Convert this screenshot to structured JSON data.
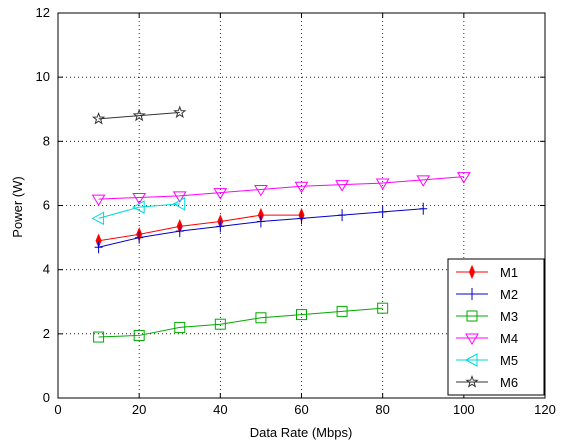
{
  "chart_data": {
    "type": "line",
    "title": "",
    "xlabel": "Data Rate (Mbps)",
    "ylabel": "Power (W)",
    "xlim": [
      0,
      120
    ],
    "ylim": [
      0,
      12
    ],
    "xticks": [
      0,
      20,
      40,
      60,
      80,
      100,
      120
    ],
    "yticks": [
      0,
      2,
      4,
      6,
      8,
      10,
      12
    ],
    "grid": true,
    "legend": "bottom-right",
    "series": [
      {
        "name": "M1",
        "color": "#ff0000",
        "marker": "diamond",
        "x": [
          10,
          20,
          30,
          40,
          50,
          60
        ],
        "y": [
          4.9,
          5.1,
          5.35,
          5.5,
          5.7,
          5.7
        ]
      },
      {
        "name": "M2",
        "color": "#0000cc",
        "marker": "plus",
        "x": [
          10,
          20,
          30,
          40,
          50,
          60,
          70,
          80,
          90
        ],
        "y": [
          4.7,
          5.0,
          5.2,
          5.35,
          5.5,
          5.6,
          5.7,
          5.8,
          5.9
        ]
      },
      {
        "name": "M3",
        "color": "#00aa00",
        "marker": "square",
        "x": [
          10,
          20,
          30,
          40,
          50,
          60,
          70,
          80
        ],
        "y": [
          1.9,
          1.95,
          2.2,
          2.3,
          2.5,
          2.6,
          2.7,
          2.8
        ]
      },
      {
        "name": "M4",
        "color": "#ff00ff",
        "marker": "triangle-down",
        "x": [
          10,
          20,
          30,
          40,
          50,
          60,
          70,
          80,
          90,
          100
        ],
        "y": [
          6.2,
          6.25,
          6.3,
          6.4,
          6.5,
          6.6,
          6.65,
          6.7,
          6.8,
          6.9
        ]
      },
      {
        "name": "M5",
        "color": "#00d8d8",
        "marker": "triangle-left",
        "x": [
          10,
          20,
          30
        ],
        "y": [
          5.6,
          5.95,
          6.05
        ]
      },
      {
        "name": "M6",
        "color": "#333333",
        "marker": "star",
        "x": [
          10,
          20,
          30
        ],
        "y": [
          8.7,
          8.8,
          8.9
        ]
      }
    ]
  }
}
